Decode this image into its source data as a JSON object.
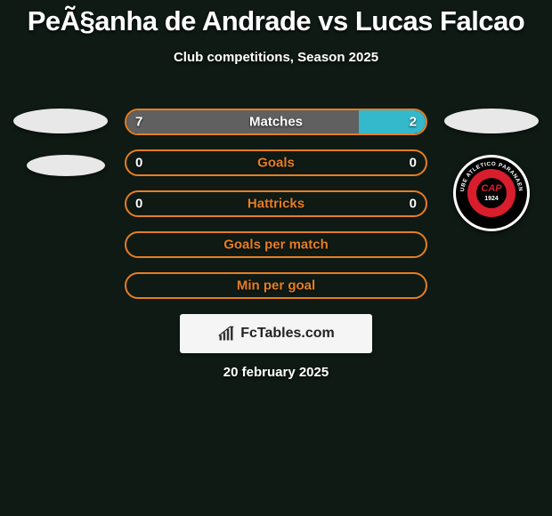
{
  "title": "PeÃ§anha de Andrade vs Lucas Falcao",
  "subtitle": "Club competitions, Season 2025",
  "date": "20 february 2025",
  "footer_label": "FcTables.com",
  "colors": {
    "background": "#0f1a15",
    "left_bar": "#606060",
    "right_bar": "#34b8cc",
    "bar_border": "#e67e22",
    "ellipse": "#e8e8e8",
    "badge_outer": "#ffffff",
    "badge_ring": "#000000",
    "badge_mid": "#d81e2c",
    "badge_inner": "#000000"
  },
  "bars": [
    {
      "label": "Matches",
      "left": "7",
      "right": "2",
      "left_pct": 77.8,
      "right_pct": 22.2,
      "show_fill": true
    },
    {
      "label": "Goals",
      "left": "0",
      "right": "0",
      "left_pct": 0,
      "right_pct": 0,
      "show_fill": false
    },
    {
      "label": "Hattricks",
      "left": "0",
      "right": "0",
      "left_pct": 0,
      "right_pct": 0,
      "show_fill": false
    },
    {
      "label": "Goals per match",
      "left": "",
      "right": "",
      "left_pct": 0,
      "right_pct": 0,
      "show_fill": false
    },
    {
      "label": "Min per goal",
      "left": "",
      "right": "",
      "left_pct": 0,
      "right_pct": 0,
      "show_fill": false
    }
  ],
  "badge_text_top": "CLUBE ATLETICO PARANAENSE",
  "badge_text_center": "CAP",
  "badge_text_year": "1924"
}
